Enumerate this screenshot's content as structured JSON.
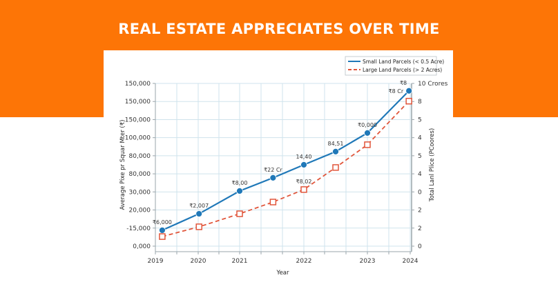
{
  "header": {
    "title": "REAL ESTATE APPRECIATES OVER TIME"
  },
  "colors": {
    "banner": "#fd7506",
    "series_small": "#1f78b8",
    "series_large": "#e1553a",
    "grid": "#cfe3ec"
  },
  "chart_data": {
    "type": "line",
    "title": "REAL ESTATE APPRECIATES OVER TIME",
    "xlabel": "Year",
    "ylabel": "Average Pixe pr Squar Mter (₹)",
    "y2label": "Total Lanl Plice (PCoores)",
    "x_ticks": [
      {
        "label": "2019",
        "value": 2019
      },
      {
        "label": "2020",
        "value": 2020
      },
      {
        "label": "2021",
        "value": 2021
      },
      {
        "label": "2022",
        "value": 2022
      },
      {
        "label": "2023",
        "value": 2023
      },
      {
        "label": "2024",
        "value": 2024
      }
    ],
    "xlim": [
      2019,
      2024
    ],
    "y_tick_labels_note": "Tick labels are printed as shown (non-monotonic); series values below are expressed in tick-index units (0 = bottom tick, 9 = top tick).",
    "y_ticks": [
      "0,000",
      "-15,000",
      "20,000",
      "30,000",
      "80,000",
      "80,000",
      "100,000",
      "150,000",
      "150,000",
      "150,000"
    ],
    "y2_ticks": [
      "0",
      "2",
      "2",
      "0",
      "4",
      "5",
      "4",
      "5",
      "8",
      "10 Crores"
    ],
    "ylim": [
      0,
      9
    ],
    "grid": true,
    "legend_position": "top-right",
    "series": [
      {
        "name": "Small Land Parcels (< 0.5 Acre)",
        "style": "solid",
        "marker": "circle",
        "x": [
          2019.16,
          2020.02,
          2021.0,
          2021.52,
          2022.0,
          2022.5,
          2023.0,
          2023.97
        ],
        "values": [
          0.88,
          1.79,
          3.05,
          3.78,
          4.5,
          5.23,
          6.26,
          8.59
        ],
        "labels": [
          "₹6,000",
          "₹2,007",
          "₹8,00",
          "₹22 Cr",
          "14,40",
          "84,51",
          "₹0,000",
          "₹8"
        ]
      },
      {
        "name": "Large Land Parcels (> 2 Acres)",
        "style": "dashed",
        "marker": "square-open",
        "x": [
          2019.16,
          2020.02,
          2021.0,
          2021.52,
          2022.0,
          2022.5,
          2023.0,
          2023.97
        ],
        "values": [
          0.53,
          1.07,
          1.79,
          2.44,
          3.13,
          4.35,
          5.61,
          8.02
        ],
        "labels": [
          "",
          "",
          "",
          "",
          "₹8,02",
          "",
          "",
          ""
        ]
      }
    ],
    "extra_labels": [
      {
        "text": "₹8 Cr",
        "series": 0,
        "point": 7
      }
    ]
  }
}
